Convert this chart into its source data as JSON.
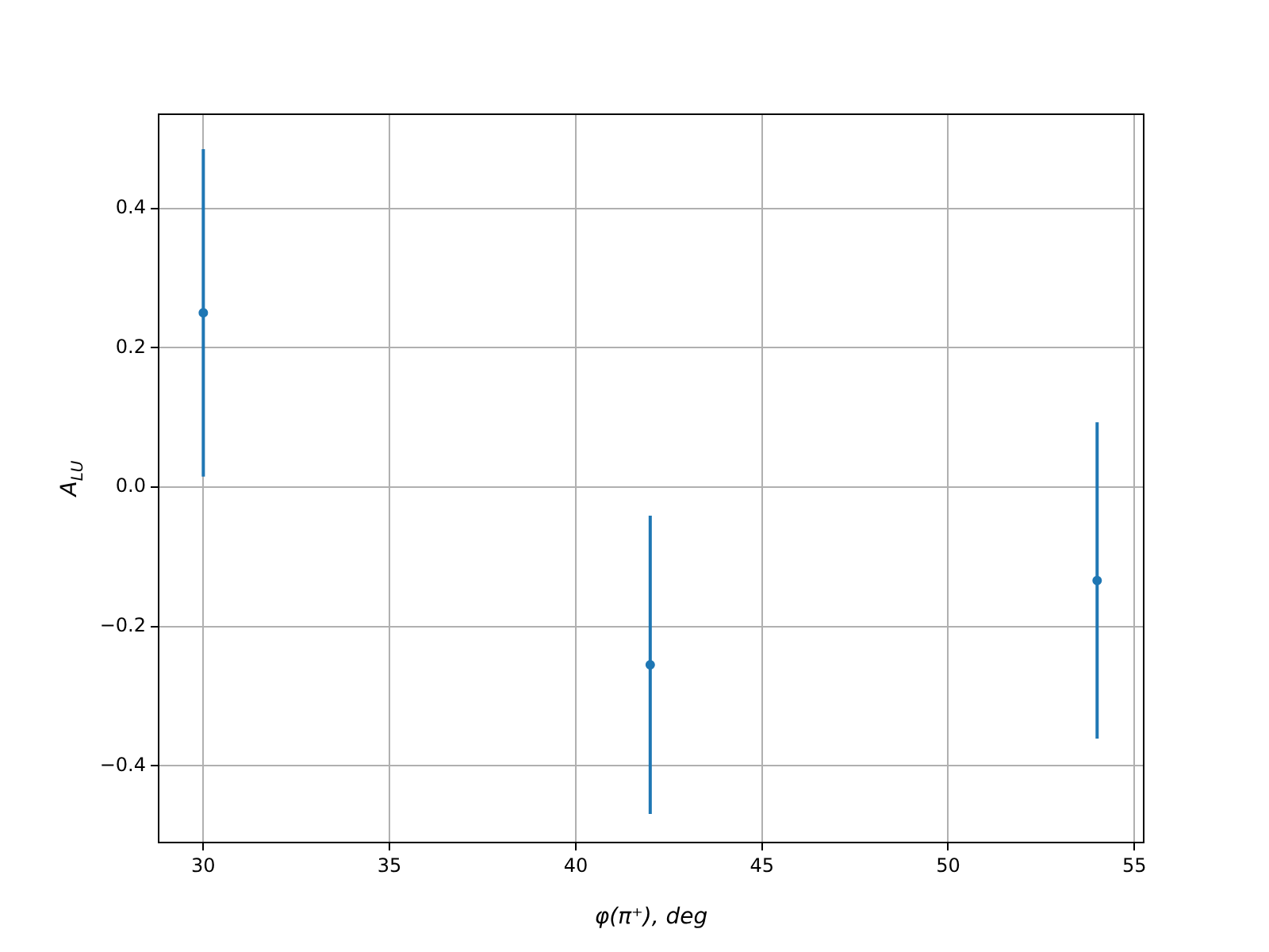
{
  "chart_data": {
    "type": "scatter",
    "xlabel": "φ(π⁺), deg",
    "ylabel": "A$_{LU}$",
    "x": [
      30,
      42,
      54
    ],
    "series": [
      {
        "color": "#1f77b4",
        "values": [
          0.25,
          -0.255,
          -0.134
        ],
        "errors": [
          0.235,
          0.214,
          0.227
        ]
      }
    ],
    "xlim": [
      28.8,
      55.25
    ],
    "ylim": [
      -0.51,
      0.535
    ],
    "xticks": [
      30,
      35,
      40,
      45,
      50,
      55
    ],
    "yticks": [
      {
        "value": -0.4,
        "label": "−0.4"
      },
      {
        "value": -0.2,
        "label": "−0.2"
      },
      {
        "value": 0,
        "label": "0.0"
      },
      {
        "value": 0.2,
        "label": "0.2"
      },
      {
        "value": 0.4,
        "label": "0.4"
      }
    ],
    "grid": true,
    "marker": "circle",
    "legend": false
  }
}
